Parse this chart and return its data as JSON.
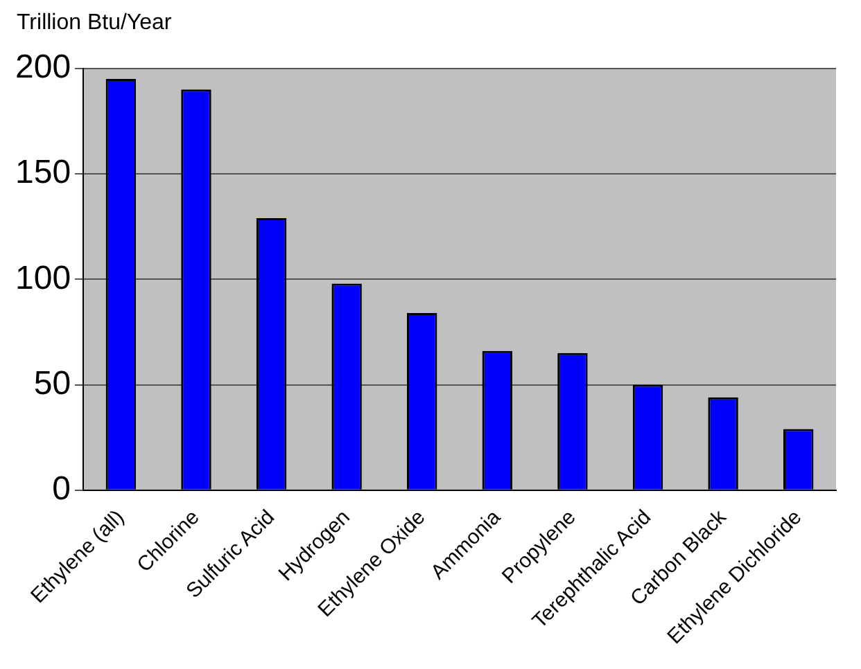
{
  "chart_data": {
    "type": "bar",
    "ylabel": "Trillion Btu/Year",
    "categories": [
      "Ethylene (all)",
      "Chlorine",
      "Sulfuric Acid",
      "Hydrogen",
      "Ethylene Oxide",
      "Ammonia",
      "Propylene",
      "Terephthalic Acid",
      "Carbon Black",
      "Ethylene Dichloride"
    ],
    "values": [
      195,
      190,
      129,
      98,
      84,
      66,
      65,
      50,
      44,
      29
    ],
    "color": "#0000ff",
    "ylim": [
      0,
      200
    ],
    "yticks": [
      0,
      50,
      100,
      150,
      200
    ],
    "grid": "y",
    "legend": false
  }
}
